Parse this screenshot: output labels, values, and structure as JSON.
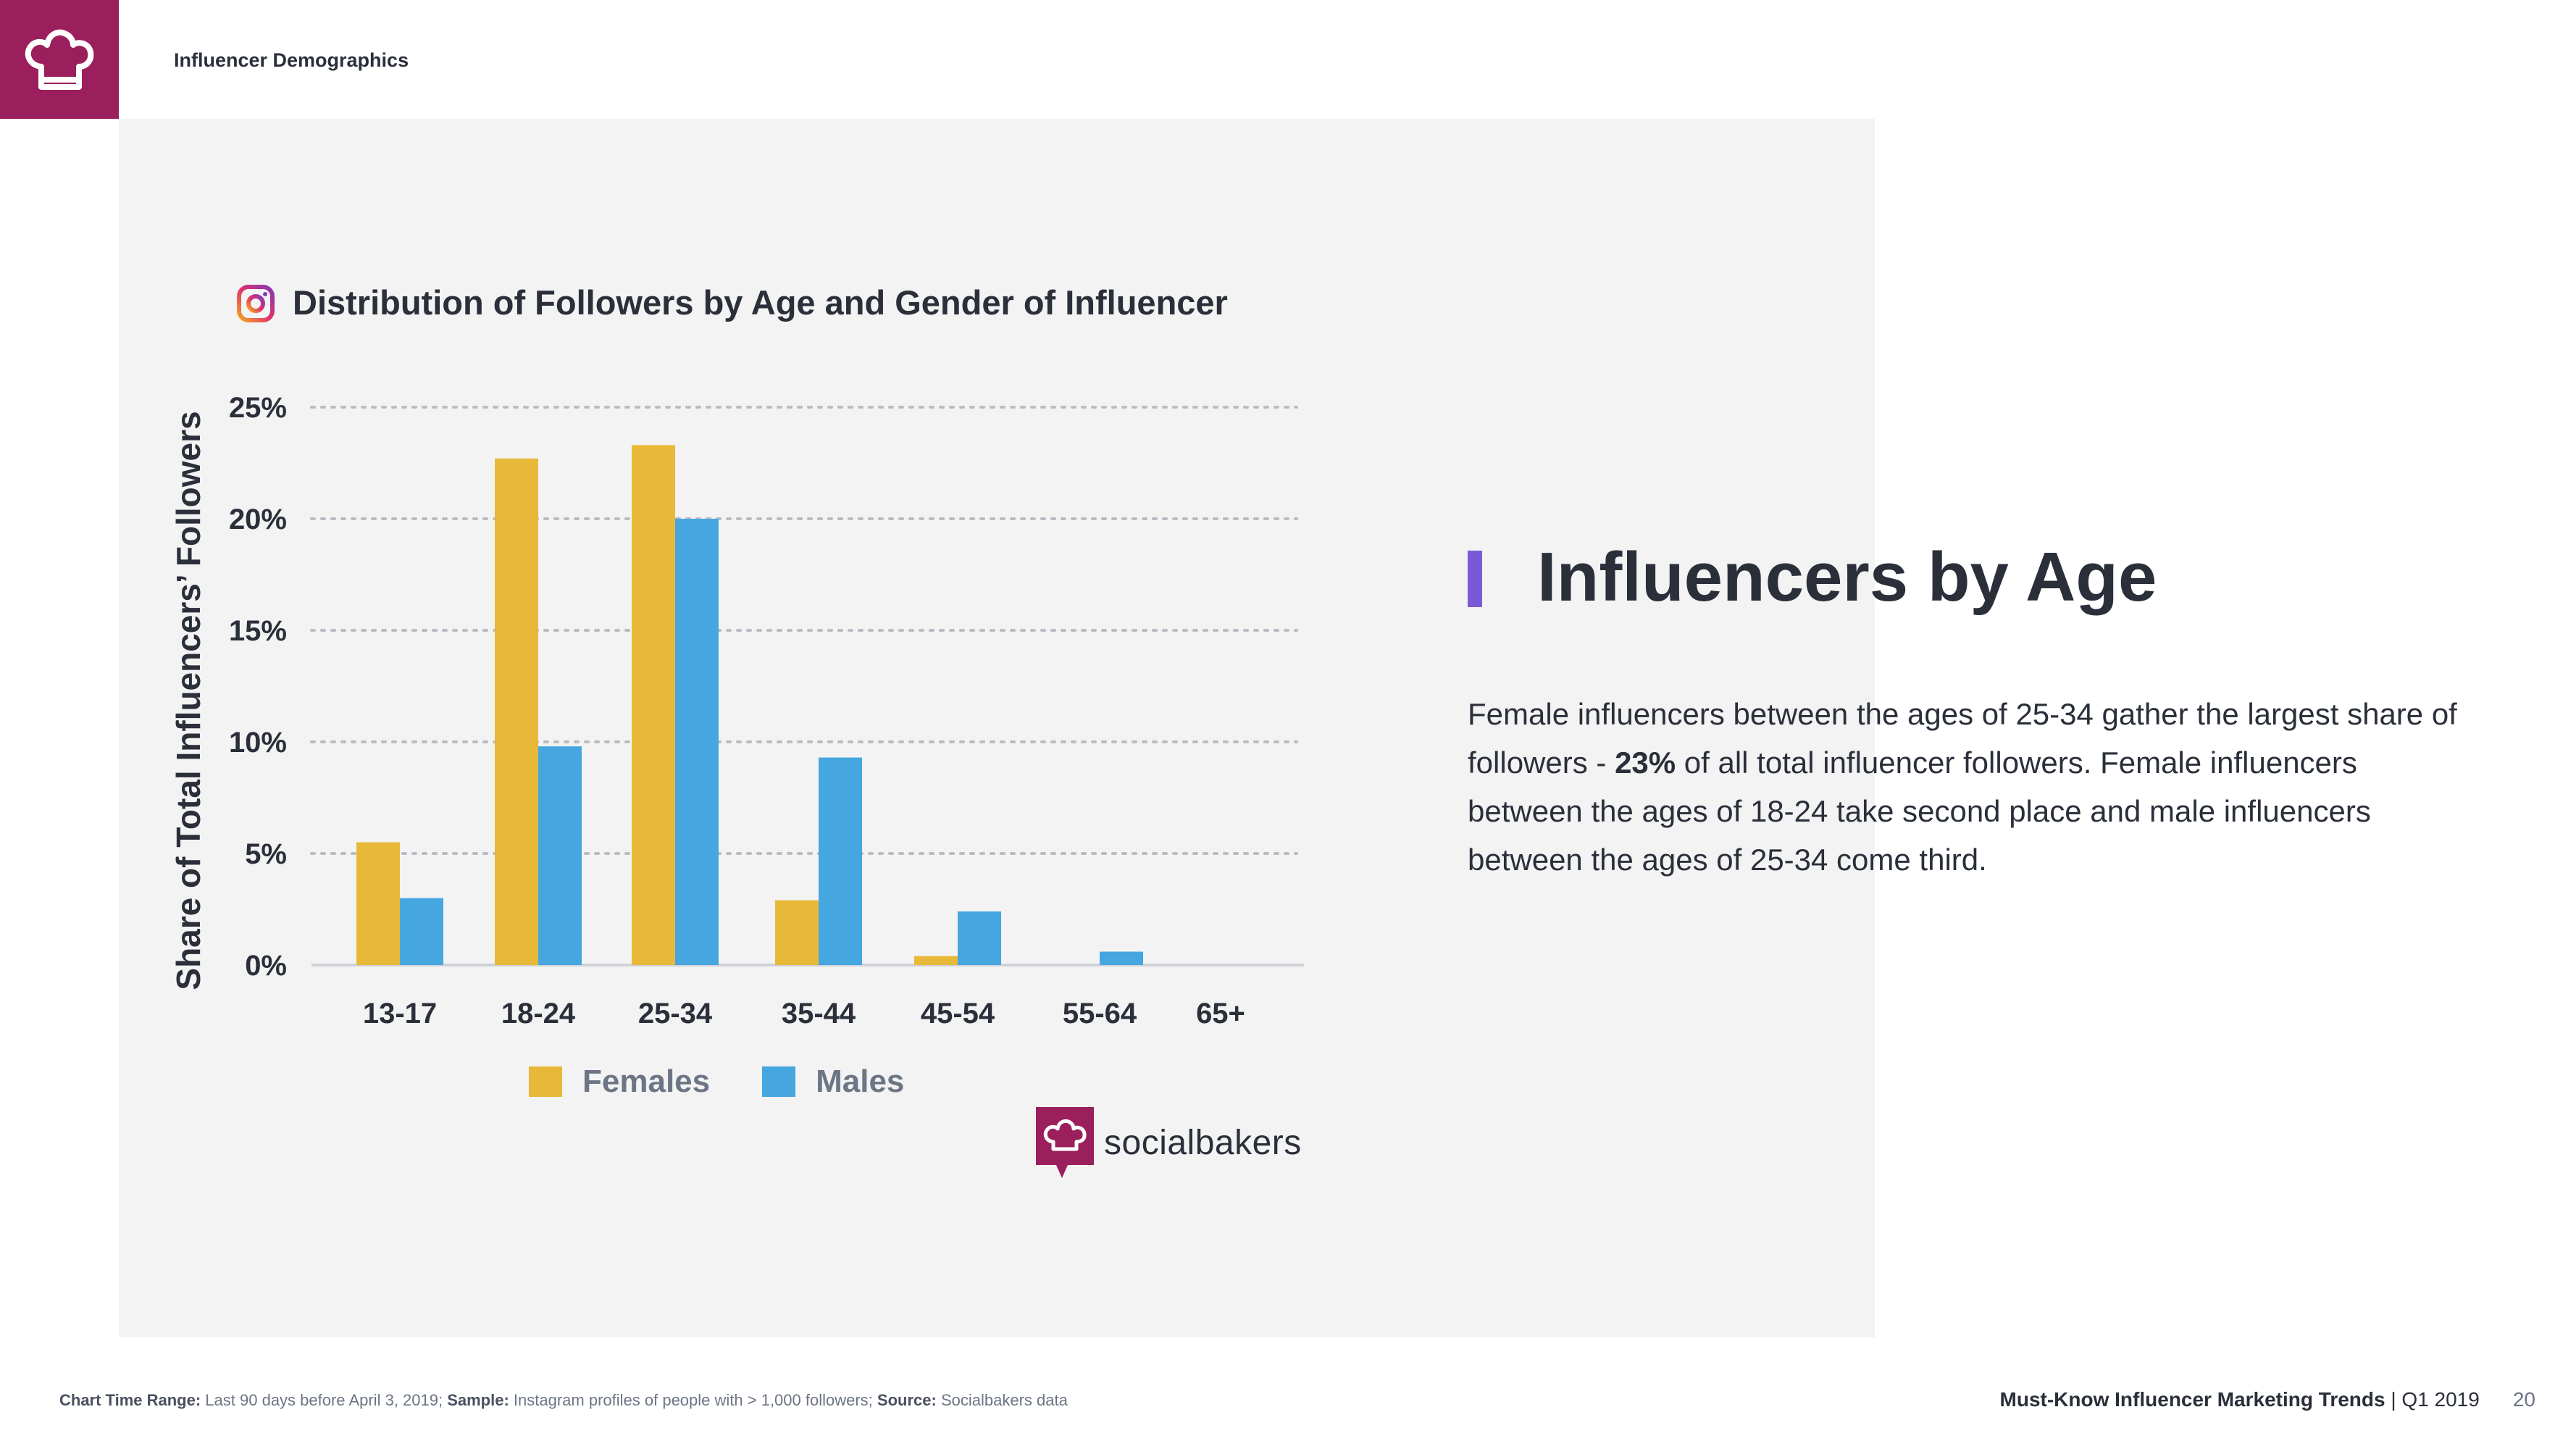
{
  "header": {
    "logo_icon": "chef-hat-icon",
    "section_label": "Influencer Demographics"
  },
  "chart": {
    "platform_icon": "instagram-icon"
  },
  "chart_data": {
    "type": "bar",
    "title": "Distribution of Followers by Age and Gender of Influencer",
    "xlabel": "",
    "ylabel": "Share of Total Influencers’ Followers",
    "categories": [
      "13-17",
      "18-24",
      "25-34",
      "35-44",
      "45-54",
      "55-64",
      "65+"
    ],
    "series": [
      {
        "name": "Females",
        "color": "#e8b838",
        "values": [
          5.5,
          22.7,
          23.3,
          2.9,
          0.4,
          0.0,
          0.0
        ]
      },
      {
        "name": "Males",
        "color": "#45a6e0",
        "values": [
          3.0,
          9.8,
          20.0,
          9.3,
          2.4,
          0.6,
          0.0
        ]
      }
    ],
    "y_ticks": [
      "0%",
      "5%",
      "10%",
      "15%",
      "20%",
      "25%"
    ],
    "y_tick_values": [
      0,
      5,
      10,
      15,
      20,
      25
    ],
    "ylim": [
      0,
      25
    ],
    "grid": true,
    "legend_position": "bottom"
  },
  "legend": {
    "females_label": "Females",
    "males_label": "Males"
  },
  "brand": {
    "name": "socialbakers",
    "icon": "socialbakers-icon",
    "color": "#9b1f5c"
  },
  "content": {
    "heading": "Influencers by Age",
    "accent_color": "#7b59d6",
    "para_1": "Female influencers between the ages of 25-34 gather the largest share of followers - ",
    "para_bold": "23%",
    "para_2": " of all total influencer followers. Female influencers between the ages of 18-24 take second place and male influencers between the ages of 25-34 come third."
  },
  "footer": {
    "time_range_label": "Chart Time Range:",
    "time_range_value": " Last 90 days before April 3, 2019; ",
    "sample_label": "Sample:",
    "sample_value": " Instagram profiles of people with > 1,000 followers; ",
    "source_label": "Source:",
    "source_value": " Socialbakers data",
    "report_title": "Must-Know Influencer Marketing Trends",
    "report_period": " | Q1 2019",
    "page_number": "20"
  }
}
